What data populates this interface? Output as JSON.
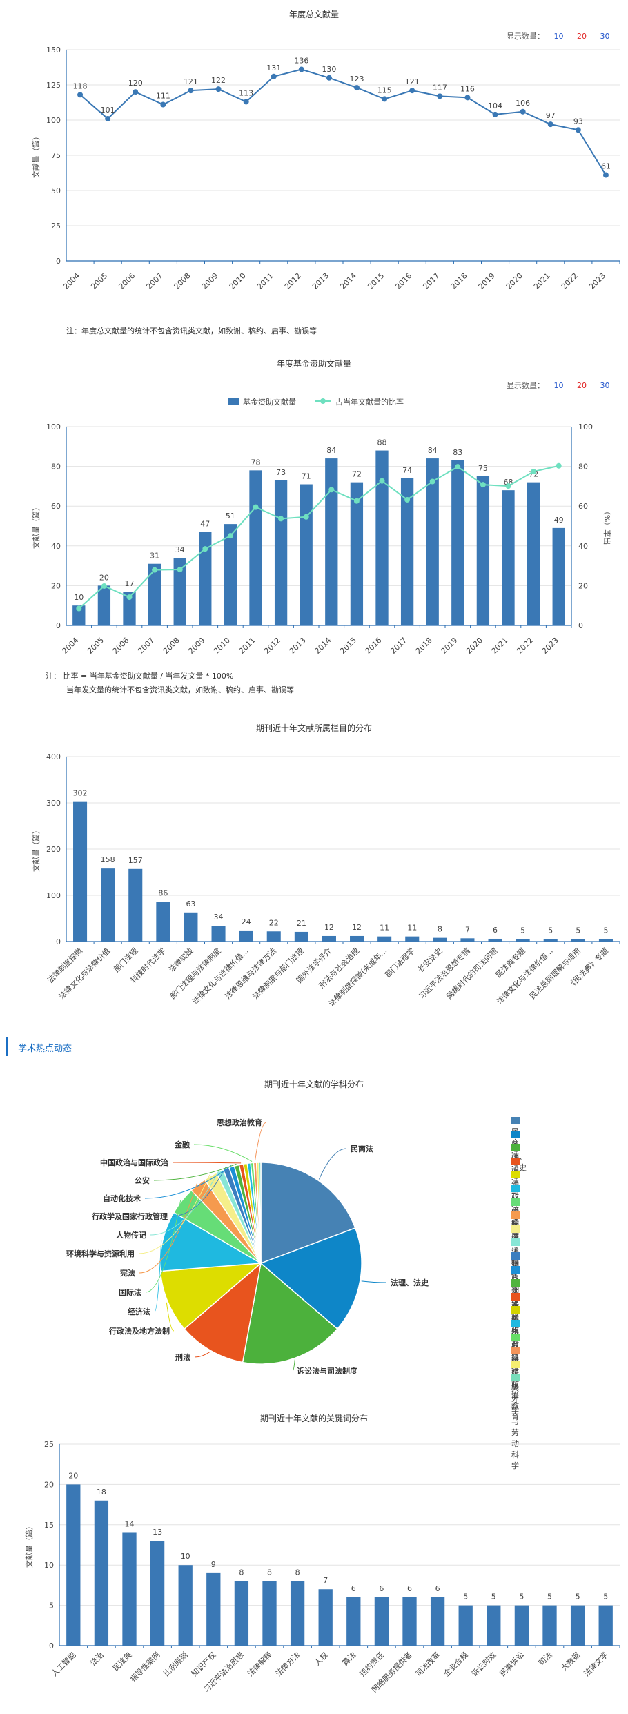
{
  "display_count": {
    "label": "显示数量：",
    "options": [
      "10",
      "20",
      "30"
    ]
  },
  "annual_chart": {
    "title": "年度总文献量",
    "note": "注：年度总文献量的统计不包含资讯类文献，如致谢、稿约、启事、勘误等"
  },
  "fund_chart": {
    "title": "年度基金资助文献量",
    "note_line1": "注：  比率 = 当年基金资助文献量 / 当年发文量 * 100%",
    "note_line2": "当年发文量的统计不包含资讯类文献，如致谢、稿约、启事、勘误等"
  },
  "column_chart": {
    "title": "期刊近十年文献所属栏目的分布"
  },
  "hot_section": {
    "title": "学术热点动态"
  },
  "subject_chart": {
    "title": "期刊近十年文献的学科分布"
  },
  "keyword_chart": {
    "title": "期刊近十年文献的关键词分布"
  },
  "chart_data": [
    {
      "type": "line",
      "title": "年度总文献量",
      "x": [
        "2004",
        "2005",
        "2006",
        "2007",
        "2008",
        "2009",
        "2010",
        "2011",
        "2012",
        "2013",
        "2014",
        "2015",
        "2016",
        "2017",
        "2018",
        "2019",
        "2020",
        "2021",
        "2022",
        "2023"
      ],
      "values": [
        118,
        101,
        120,
        111,
        121,
        122,
        113,
        131,
        136,
        130,
        123,
        115,
        121,
        117,
        116,
        104,
        106,
        97,
        93,
        61
      ],
      "ylabel": "文献量（篇）",
      "ylim": [
        0,
        150
      ],
      "yticks": [
        "0",
        "25",
        "50",
        "75",
        "100",
        "125",
        "150"
      ]
    },
    {
      "type": "bar",
      "title": "年度基金资助文献量",
      "x": [
        "2004",
        "2005",
        "2006",
        "2007",
        "2008",
        "2009",
        "2010",
        "2011",
        "2012",
        "2013",
        "2014",
        "2015",
        "2016",
        "2017",
        "2018",
        "2019",
        "2020",
        "2021",
        "2022",
        "2023"
      ],
      "series": [
        {
          "name": "基金资助文献量",
          "values": [
            10,
            20,
            17,
            31,
            34,
            47,
            51,
            78,
            73,
            71,
            84,
            72,
            88,
            74,
            84,
            83,
            75,
            68,
            72,
            49
          ]
        },
        {
          "name": "占当年文献量的比率",
          "values": [
            8.5,
            19.8,
            14.2,
            27.9,
            28.1,
            38.5,
            45.1,
            59.5,
            53.7,
            54.6,
            68.3,
            62.6,
            72.7,
            63.2,
            72.4,
            79.8,
            70.8,
            70.1,
            77.4,
            80.3
          ]
        }
      ],
      "ylabel": "文献量（篇）",
      "y2label": "（%）率出",
      "ylim": [
        0,
        100
      ],
      "y2lim": [
        0,
        100
      ],
      "yticks": [
        "0",
        "20",
        "40",
        "60",
        "80",
        "100"
      ],
      "y2ticks": [
        "0",
        "20",
        "40",
        "60",
        "80",
        "100"
      ]
    },
    {
      "type": "bar",
      "title": "期刊近十年文献所属栏目的分布",
      "categories": [
        "法律制度探微",
        "法律文化与法律价值",
        "部门法理",
        "科技时代法学",
        "法律实践",
        "部门法理与法律制度",
        "法律文化与法律价值...",
        "法律思维与法律方法",
        "法律制度与部门法理",
        "国外法学评介",
        "刑法与社会治理",
        "法律制度探微(未成年...",
        "部门法理学",
        "长安法史",
        "习近平法治思想专稿",
        "网络时代的司法问题",
        "民法典专题",
        "法律文化与法律价值...",
        "民法总则理解与适用",
        "《民法典》专题"
      ],
      "values": [
        302,
        158,
        157,
        86,
        63,
        34,
        24,
        22,
        21,
        12,
        12,
        11,
        11,
        8,
        7,
        6,
        5,
        5,
        5,
        5
      ],
      "ylabel": "文献量（篇）",
      "ylim": [
        0,
        400
      ],
      "yticks": [
        "0",
        "100",
        "200",
        "300",
        "400"
      ]
    },
    {
      "type": "pie",
      "title": "期刊近十年文献的学科分布",
      "labels": [
        "民商法",
        "法理、法史",
        "诉讼法与司法制度",
        "刑法",
        "行政法及地方法制",
        "经济法",
        "国际法",
        "宪法",
        "环境科学与资源利用",
        "人物传记",
        "行政学及国家行政管理",
        "自动化技术",
        "公安",
        "中国政治与国际政治",
        "投资",
        "企业经济",
        "金融",
        "思想政治教育",
        "出版",
        "人才学与劳动科学"
      ],
      "values": [
        250,
        220,
        215,
        140,
        130,
        125,
        58,
        35,
        28,
        15,
        13,
        11,
        10,
        9,
        8,
        7,
        6,
        6,
        5,
        4
      ],
      "colors": [
        "#4682b4",
        "#0e86c8",
        "#4cb13c",
        "#e8541e",
        "#dddd00",
        "#1fb9e0",
        "#66dd77",
        "#f59a4e",
        "#f5ee8a",
        "#88e6d6",
        "#3b7ec0",
        "#1b8fd6",
        "#4fb43e",
        "#e8541e",
        "#d4d400",
        "#1fb9e0",
        "#66dd66",
        "#f4945a",
        "#f5ee70",
        "#77ddbb"
      ]
    },
    {
      "type": "bar",
      "title": "期刊近十年文献的关键词分布",
      "categories": [
        "人工智能",
        "法治",
        "民法典",
        "指导性案例",
        "比例原则",
        "知识产权",
        "习近平法治思想",
        "法律解释",
        "法律方法",
        "人权",
        "算法",
        "违约责任",
        "网络服务提供者",
        "司法改革",
        "企业合规",
        "诉讼时效",
        "民事诉讼",
        "司法",
        "大数据",
        "法律文学"
      ],
      "values": [
        20,
        18,
        14,
        13,
        10,
        9,
        8,
        8,
        8,
        7,
        6,
        6,
        6,
        6,
        5,
        5,
        5,
        5,
        5,
        5
      ],
      "ylabel": "文献量（篇）",
      "ylim": [
        0,
        25
      ],
      "yticks": [
        "0",
        "5",
        "10",
        "15",
        "20",
        "25"
      ]
    }
  ]
}
